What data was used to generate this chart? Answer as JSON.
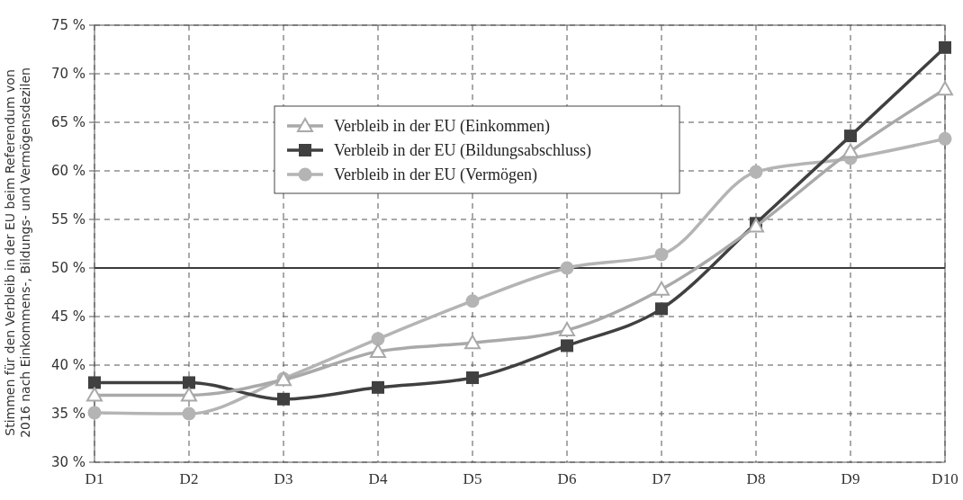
{
  "chart_data": {
    "type": "line",
    "ylabel": "Stimmen für den Verbleib in der EU beim Referendum von\n2016 nach Einkommens-, Bildungs- und Vermögensdezilen",
    "categories": [
      "D1",
      "D2",
      "D3",
      "D4",
      "D5",
      "D6",
      "D7",
      "D8",
      "D9",
      "D10"
    ],
    "series": [
      {
        "name": "Verbleib in der EU (Einkommen)",
        "color": "#a9a9a9",
        "marker": "triangle",
        "values": [
          36.9,
          36.9,
          38.5,
          41.4,
          42.3,
          43.6,
          47.8,
          54.3,
          62.0,
          68.4
        ]
      },
      {
        "name": "Verbleib in der EU (Bildungsabschluss)",
        "color": "#404040",
        "marker": "square",
        "values": [
          38.2,
          38.2,
          36.5,
          37.7,
          38.7,
          42.0,
          45.8,
          54.6,
          63.6,
          72.7
        ]
      },
      {
        "name": "Verbleib in der EU (Vermögen)",
        "color": "#b4b4b4",
        "marker": "circle",
        "values": [
          35.1,
          35.0,
          38.6,
          42.7,
          46.6,
          50.0,
          51.4,
          59.9,
          61.3,
          63.3
        ]
      }
    ],
    "ylim": [
      30,
      75
    ],
    "yticks": [
      {
        "value": 30,
        "label": "30 %"
      },
      {
        "value": 35,
        "label": "35 %"
      },
      {
        "value": 40,
        "label": "40 %"
      },
      {
        "value": 45,
        "label": "45 %"
      },
      {
        "value": 50,
        "label": "50 %"
      },
      {
        "value": 55,
        "label": "55 %"
      },
      {
        "value": 60,
        "label": "60 %"
      },
      {
        "value": 65,
        "label": "65 %"
      },
      {
        "value": 70,
        "label": "70 %"
      },
      {
        "value": 75,
        "label": "75 %"
      }
    ],
    "ref_lines": [
      {
        "axis": "y",
        "value": 50,
        "color": "#3a3a3a"
      }
    ],
    "grid": true,
    "line_style": "solid",
    "legend": "top"
  }
}
